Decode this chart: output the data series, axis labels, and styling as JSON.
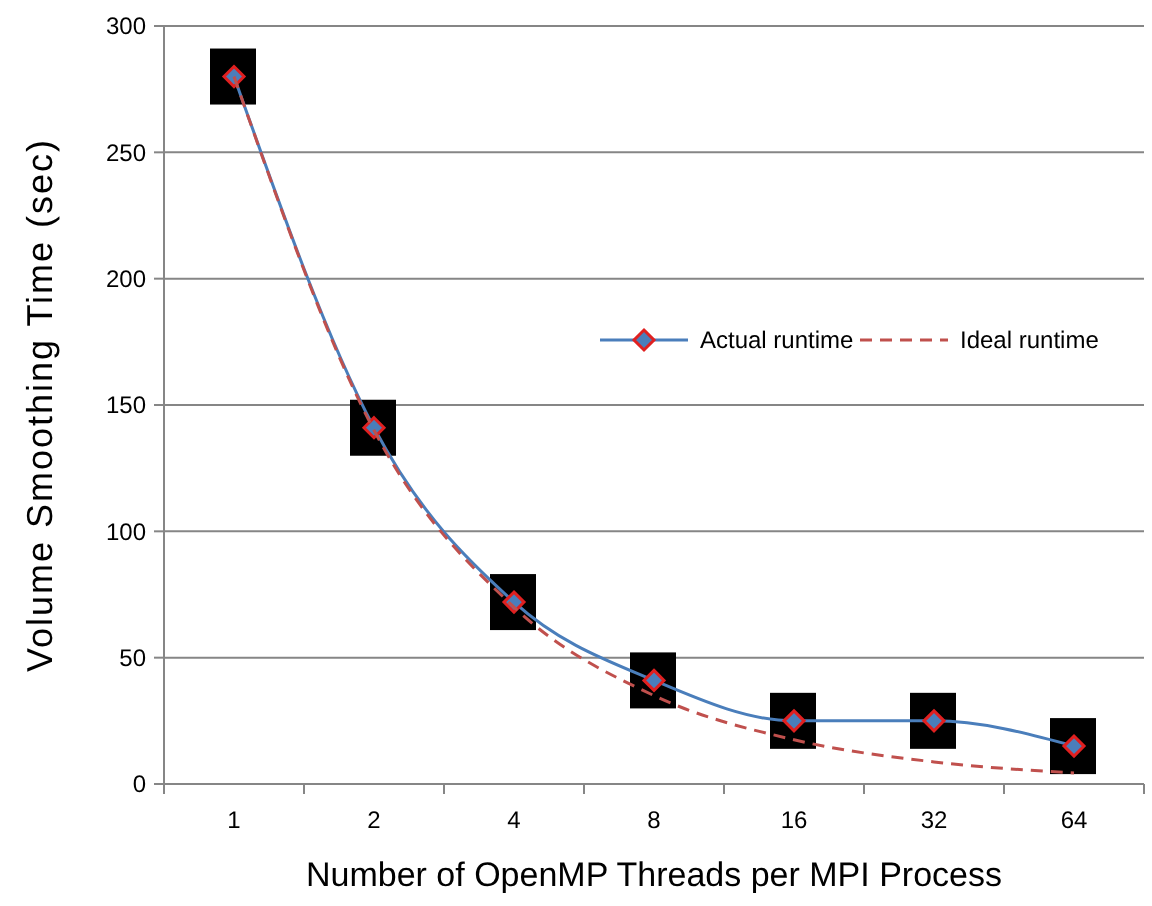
{
  "chart_data": {
    "type": "line",
    "xlabel": "Number of OpenMP Threads per MPI Process",
    "ylabel": "Volume Smoothing Time (sec)",
    "categories": [
      "1",
      "2",
      "4",
      "8",
      "16",
      "32",
      "64"
    ],
    "series": [
      {
        "name": "Actual runtime",
        "color": "#4a7ebb",
        "values": [
          280,
          141,
          72,
          41,
          25,
          25,
          15
        ],
        "marker": "diamond",
        "line_style": "solid"
      },
      {
        "name": "Ideal runtime",
        "color": "#c0504d",
        "values": [
          280,
          140,
          70,
          35,
          17.5,
          8.75,
          4.4
        ],
        "marker": "none",
        "line_style": "dashed"
      }
    ],
    "ylim": [
      0,
      300
    ],
    "yticks": [
      0,
      50,
      100,
      150,
      200,
      250,
      300
    ],
    "grid": "y",
    "legend": "right"
  }
}
